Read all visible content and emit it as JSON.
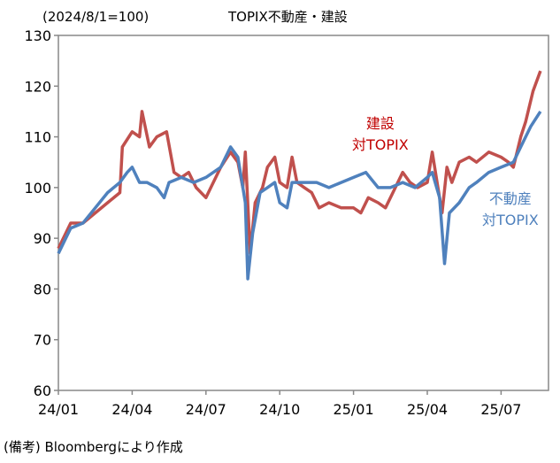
{
  "chart_data": {
    "type": "line",
    "title": "TOPIX不動産・建設",
    "ylabel": "(2024/8/1=100)",
    "xlabel": "",
    "ylim": [
      60,
      130
    ],
    "yticks": [
      60,
      70,
      80,
      90,
      100,
      110,
      120,
      130
    ],
    "xticks": [
      "24/01",
      "24/04",
      "24/07",
      "24/10",
      "25/01",
      "25/04",
      "25/07"
    ],
    "x_unit": "months since 2024/01",
    "series": [
      {
        "name": "建設対TOPIX",
        "label_lines": [
          "建設",
          "対TOPIX"
        ],
        "color": "#C0504D",
        "x": [
          0,
          0.5,
          1,
          1.5,
          2,
          2.5,
          2.6,
          3,
          3.3,
          3.4,
          3.7,
          4,
          4.4,
          4.7,
          5,
          5.3,
          5.6,
          6,
          6.3,
          6.6,
          7,
          7.3,
          7.5,
          7.6,
          7.8,
          8,
          8.3,
          8.5,
          8.8,
          9,
          9.3,
          9.5,
          9.7,
          10,
          10.3,
          10.6,
          11,
          11.5,
          12,
          12.3,
          12.6,
          13,
          13.3,
          13.6,
          14,
          14.3,
          14.6,
          15,
          15.2,
          15.4,
          15.6,
          15.8,
          16,
          16.3,
          16.7,
          17,
          17.5,
          18,
          18.3,
          18.5,
          18.8,
          19,
          19.3,
          19.6
        ],
        "values": [
          88,
          93,
          93,
          95,
          97,
          99,
          108,
          111,
          110,
          115,
          108,
          110,
          111,
          103,
          102,
          103,
          100,
          98,
          101,
          104,
          107,
          105,
          100,
          107,
          87,
          97,
          100,
          104,
          106,
          101,
          100,
          106,
          101,
          100,
          99,
          96,
          97,
          96,
          96,
          95,
          98,
          97,
          96,
          99,
          103,
          101,
          100,
          101,
          107,
          101,
          95,
          104,
          101,
          105,
          106,
          105,
          107,
          106,
          105,
          104,
          110,
          113,
          119,
          123
        ]
      },
      {
        "name": "不動産対TOPIX",
        "label_lines": [
          "不動産",
          "対TOPIX"
        ],
        "color": "#4F81BD",
        "x": [
          0,
          0.5,
          1,
          1.5,
          2,
          2.5,
          2.8,
          3,
          3.3,
          3.6,
          4,
          4.3,
          4.5,
          5,
          5.5,
          6,
          6.3,
          6.6,
          7,
          7.3,
          7.5,
          7.6,
          7.7,
          7.9,
          8.2,
          8.5,
          8.8,
          9,
          9.3,
          9.5,
          9.8,
          10,
          10.5,
          11,
          11.5,
          12,
          12.5,
          13,
          13.5,
          14,
          14.5,
          15,
          15.2,
          15.5,
          15.7,
          15.9,
          16.3,
          16.7,
          17,
          17.5,
          18,
          18.5,
          18.8,
          19.2,
          19.6
        ],
        "values": [
          87,
          92,
          93,
          96,
          99,
          101,
          103,
          104,
          101,
          101,
          100,
          98,
          101,
          102,
          101,
          102,
          103,
          104,
          108,
          106,
          100,
          97,
          82,
          91,
          99,
          100,
          101,
          97,
          96,
          101,
          101,
          101,
          101,
          100,
          101,
          102,
          103,
          100,
          100,
          101,
          100,
          102,
          103,
          98,
          85,
          95,
          97,
          100,
          101,
          103,
          104,
          105,
          108,
          112,
          115
        ]
      }
    ]
  },
  "footer": "(備考) Bloombergにより作成"
}
